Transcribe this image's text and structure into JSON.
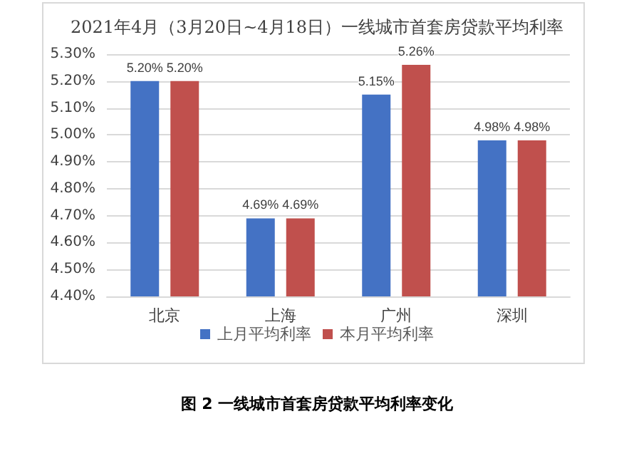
{
  "chart_data": {
    "type": "bar",
    "title": "2021年4月（3月20日~4月18日）一线城市首套房贷款平均利率",
    "categories": [
      "北京",
      "上海",
      "广州",
      "深圳"
    ],
    "series": [
      {
        "name": "上月平均利率",
        "color": "#4472c4",
        "values": [
          5.2,
          4.69,
          5.15,
          4.98
        ],
        "value_labels": [
          "5.20%",
          "4.69%",
          "5.15%",
          "4.98%"
        ]
      },
      {
        "name": "本月平均利率",
        "color": "#c0504d",
        "values": [
          5.2,
          4.69,
          5.26,
          4.98
        ],
        "value_labels": [
          "5.20%",
          "4.69%",
          "5.26%",
          "4.98%"
        ]
      }
    ],
    "ylim": [
      4.4,
      5.3
    ],
    "yticks": [
      {
        "value": 4.4,
        "label": "4.40%"
      },
      {
        "value": 4.5,
        "label": "4.50%"
      },
      {
        "value": 4.6,
        "label": "4.60%"
      },
      {
        "value": 4.7,
        "label": "4.70%"
      },
      {
        "value": 4.8,
        "label": "4.80%"
      },
      {
        "value": 4.9,
        "label": "4.90%"
      },
      {
        "value": 5.0,
        "label": "5.00%"
      },
      {
        "value": 5.1,
        "label": "5.10%"
      },
      {
        "value": 5.2,
        "label": "5.20%"
      },
      {
        "value": 5.3,
        "label": "5.30%"
      }
    ],
    "grid": "y",
    "legend": "bottom",
    "annotations": [
      "图 2 一线城市首套房贷款平均利率变化"
    ]
  }
}
